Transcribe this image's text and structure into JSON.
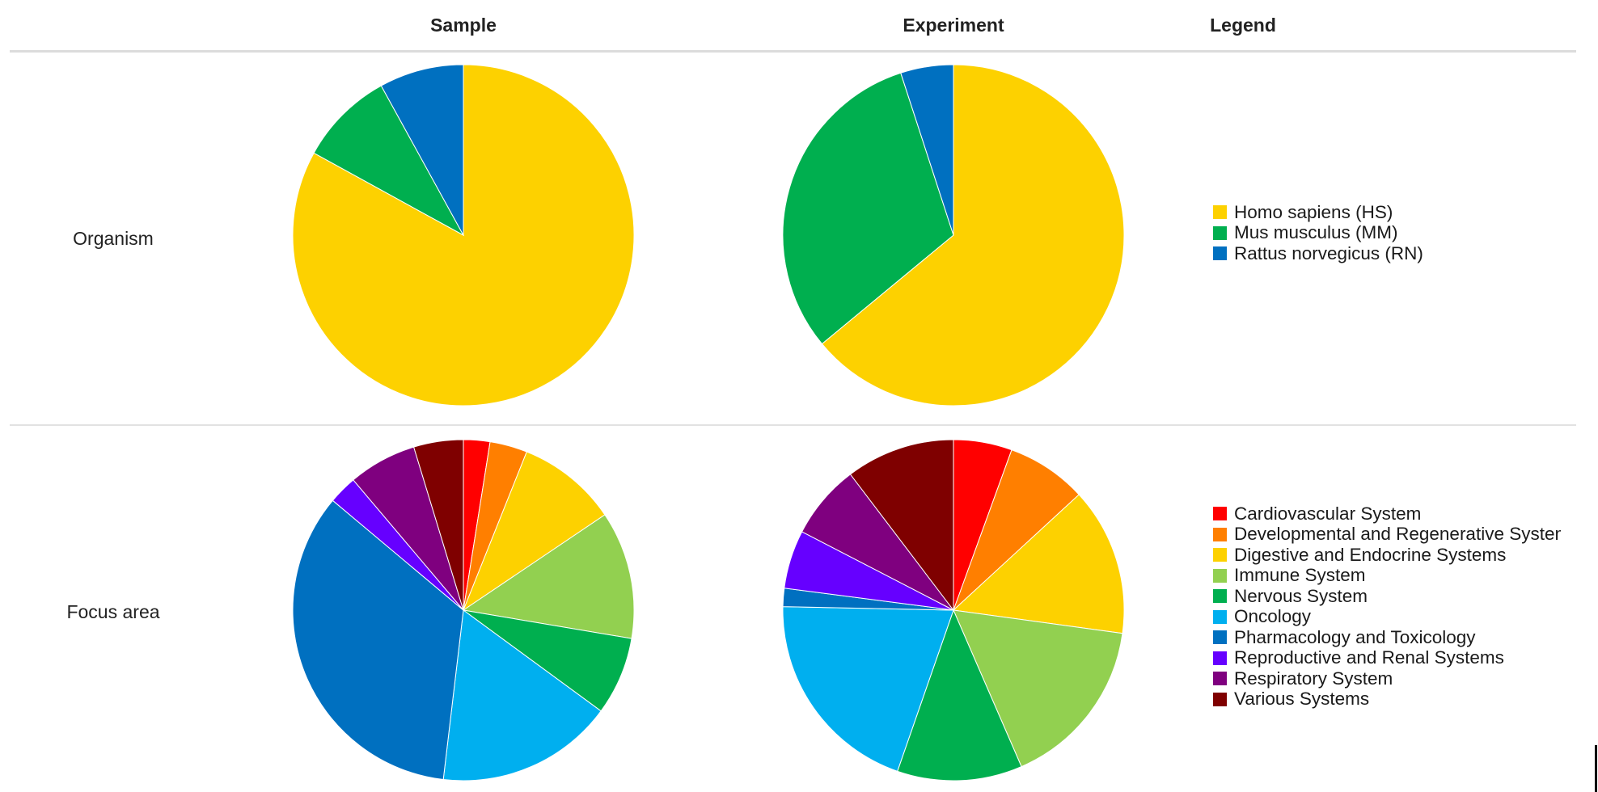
{
  "headers": {
    "sample": "Sample",
    "experiment": "Experiment",
    "legend": "Legend"
  },
  "rows": {
    "organism": "Organism",
    "focus_area": "Focus area"
  },
  "legends": {
    "organism": [
      {
        "label": "Homo sapiens (HS)",
        "color": "#FDD100"
      },
      {
        "label": "Mus musculus (MM)",
        "color": "#00AF4F"
      },
      {
        "label": "Rattus norvegicus (RN)",
        "color": "#0070C0"
      }
    ],
    "focus_area": [
      {
        "label": "Cardiovascular System",
        "color": "#FF0000"
      },
      {
        "label": "Developmental and Regenerative Systems",
        "color": "#FF7F00"
      },
      {
        "label": "Digestive and Endocrine Systems",
        "color": "#FDD100"
      },
      {
        "label": "Immune System",
        "color": "#92D050"
      },
      {
        "label": "Nervous System",
        "color": "#00AF4F"
      },
      {
        "label": "Oncology",
        "color": "#00AFEF"
      },
      {
        "label": "Pharmacology and Toxicology",
        "color": "#0070C0"
      },
      {
        "label": "Reproductive and Renal Systems",
        "color": "#6600FF"
      },
      {
        "label": "Respiratory System",
        "color": "#7F007F"
      },
      {
        "label": "Various Systems",
        "color": "#7F0000"
      }
    ]
  },
  "chart_data": [
    {
      "type": "pie",
      "row": "Organism",
      "column": "Sample",
      "categories": [
        "Homo sapiens (HS)",
        "Mus musculus (MM)",
        "Rattus norvegicus (RN)"
      ],
      "values": [
        83,
        9,
        8
      ],
      "colors": [
        "#FDD100",
        "#00AF4F",
        "#0070C0"
      ]
    },
    {
      "type": "pie",
      "row": "Organism",
      "column": "Experiment",
      "categories": [
        "Homo sapiens (HS)",
        "Mus musculus (MM)",
        "Rattus norvegicus (RN)"
      ],
      "values": [
        64,
        31,
        5
      ],
      "colors": [
        "#FDD100",
        "#00AF4F",
        "#0070C0"
      ]
    },
    {
      "type": "pie",
      "row": "Focus area",
      "column": "Sample",
      "categories": [
        "Cardiovascular System",
        "Developmental and Regenerative Systems",
        "Digestive and Endocrine Systems",
        "Immune System",
        "Nervous System",
        "Oncology",
        "Pharmacology and Toxicology",
        "Reproductive and Renal Systems",
        "Respiratory System",
        "Various Systems"
      ],
      "values": [
        2.4,
        3.4,
        9.1,
        11.6,
        7.1,
        16.1,
        32.8,
        2.6,
        6.2,
        4.5
      ],
      "colors": [
        "#FF0000",
        "#FF7F00",
        "#FDD100",
        "#92D050",
        "#00AF4F",
        "#00AFEF",
        "#0070C0",
        "#6600FF",
        "#7F007F",
        "#7F0000"
      ]
    },
    {
      "type": "pie",
      "row": "Focus area",
      "column": "Experiment",
      "categories": [
        "Cardiovascular System",
        "Developmental and Regenerative Systems",
        "Digestive and Endocrine Systems",
        "Immune System",
        "Nervous System",
        "Oncology",
        "Pharmacology and Toxicology",
        "Reproductive and Renal Systems",
        "Respiratory System",
        "Various Systems"
      ],
      "values": [
        5.1,
        7.0,
        12.9,
        15.0,
        10.9,
        18.4,
        1.6,
        5.1,
        6.5,
        9.5
      ],
      "colors": [
        "#FF0000",
        "#FF7F00",
        "#FDD100",
        "#92D050",
        "#00AF4F",
        "#00AFEF",
        "#0070C0",
        "#6600FF",
        "#7F007F",
        "#7F0000"
      ]
    }
  ]
}
